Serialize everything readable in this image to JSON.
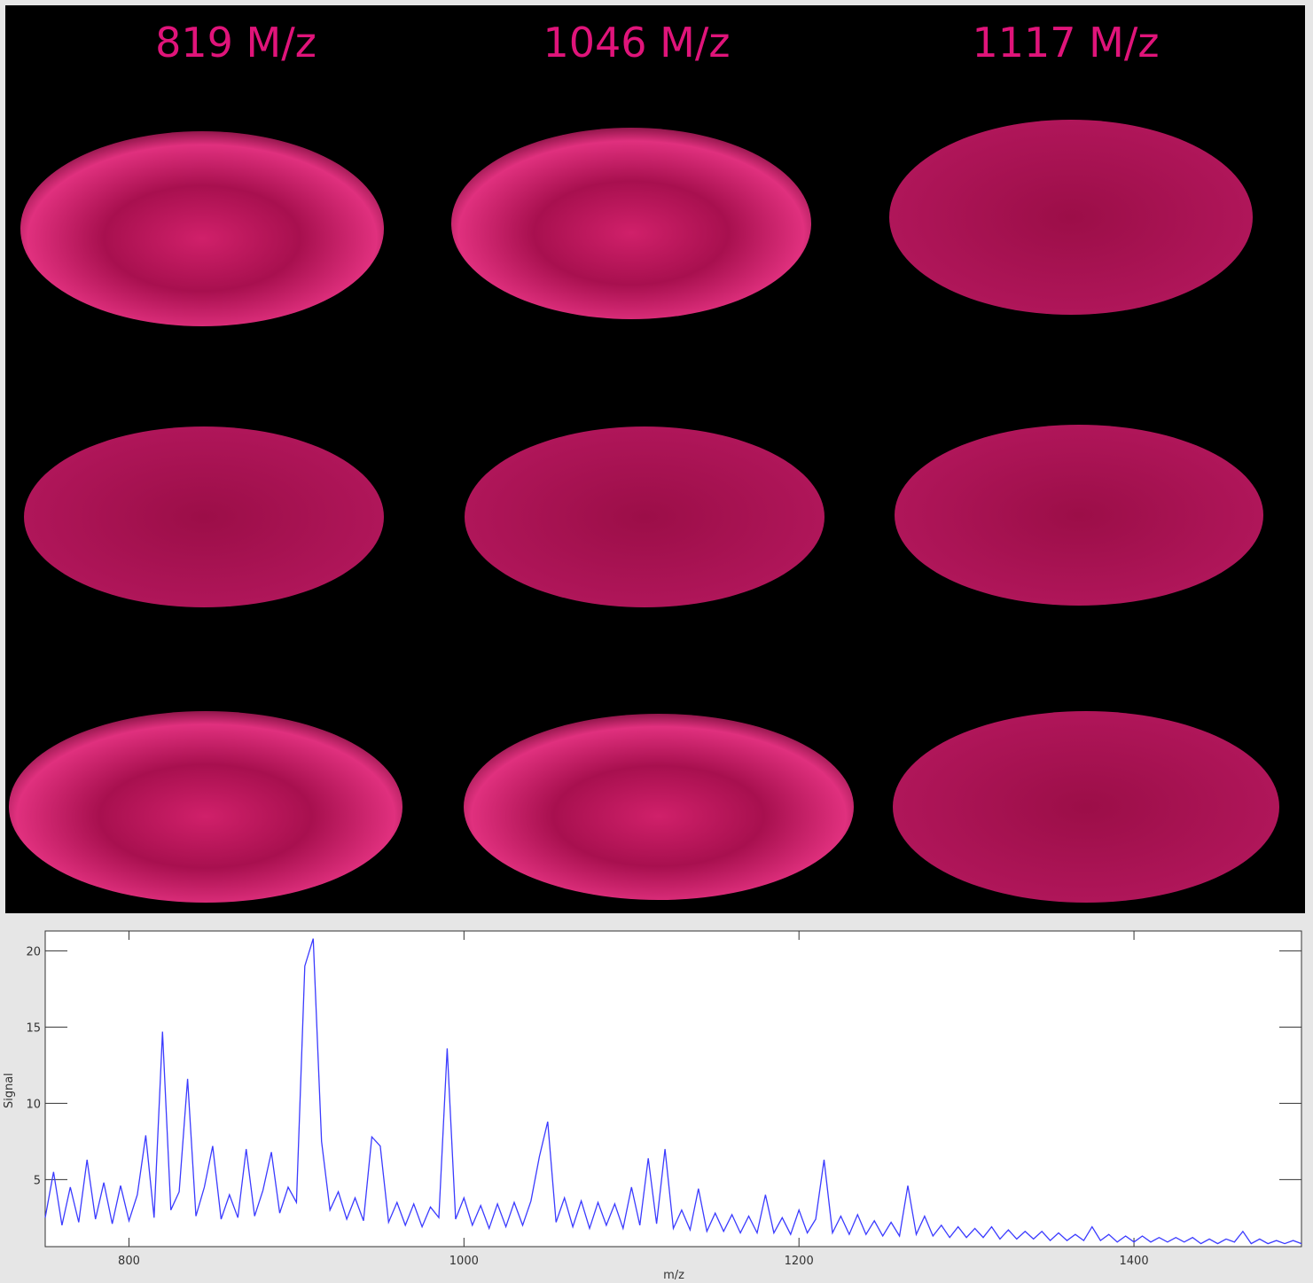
{
  "panel_titles": [
    "819 M/z",
    "1046 M/z",
    "1117 M/z"
  ],
  "chart_data": {
    "type": "line",
    "xlabel": "m/z",
    "ylabel": "Signal",
    "xlim": [
      750,
      1500
    ],
    "ylim": [
      0.6,
      21.3
    ],
    "xticks": [
      800,
      1000,
      1200,
      1400
    ],
    "yticks": [
      5,
      10,
      15,
      20
    ],
    "x": [
      750,
      755,
      760,
      765,
      770,
      775,
      780,
      785,
      790,
      795,
      800,
      805,
      810,
      815,
      820,
      825,
      830,
      835,
      840,
      845,
      850,
      855,
      860,
      865,
      870,
      875,
      880,
      885,
      890,
      895,
      900,
      905,
      910,
      915,
      920,
      925,
      930,
      935,
      940,
      945,
      950,
      955,
      960,
      965,
      970,
      975,
      980,
      985,
      990,
      995,
      1000,
      1005,
      1010,
      1015,
      1020,
      1025,
      1030,
      1035,
      1040,
      1045,
      1050,
      1055,
      1060,
      1065,
      1070,
      1075,
      1080,
      1085,
      1090,
      1095,
      1100,
      1105,
      1110,
      1115,
      1120,
      1125,
      1130,
      1135,
      1140,
      1145,
      1150,
      1155,
      1160,
      1165,
      1170,
      1175,
      1180,
      1185,
      1190,
      1195,
      1200,
      1205,
      1210,
      1215,
      1220,
      1225,
      1230,
      1235,
      1240,
      1245,
      1250,
      1255,
      1260,
      1265,
      1270,
      1275,
      1280,
      1285,
      1290,
      1295,
      1300,
      1305,
      1310,
      1315,
      1320,
      1325,
      1330,
      1335,
      1340,
      1345,
      1350,
      1355,
      1360,
      1365,
      1370,
      1375,
      1380,
      1385,
      1390,
      1395,
      1400,
      1405,
      1410,
      1415,
      1420,
      1425,
      1430,
      1435,
      1440,
      1445,
      1450,
      1455,
      1460,
      1465,
      1470,
      1475,
      1480,
      1485,
      1490,
      1495,
      1500
    ],
    "series": [
      {
        "color": "#3b3bff",
        "values": [
          2.5,
          5.5,
          2.0,
          4.5,
          2.2,
          6.3,
          2.4,
          4.8,
          2.1,
          4.6,
          2.3,
          4.0,
          7.9,
          2.5,
          14.7,
          3.0,
          4.2,
          11.6,
          2.6,
          4.5,
          7.2,
          2.4,
          4.0,
          2.5,
          7.0,
          2.6,
          4.3,
          6.8,
          2.8,
          4.5,
          3.5,
          19.0,
          20.8,
          7.5,
          3.0,
          4.2,
          2.4,
          3.8,
          2.3,
          7.8,
          7.2,
          2.2,
          3.5,
          2.0,
          3.4,
          1.9,
          3.2,
          2.5,
          13.6,
          2.4,
          3.8,
          2.0,
          3.3,
          1.8,
          3.4,
          1.9,
          3.5,
          2.0,
          3.6,
          6.5,
          8.8,
          2.2,
          3.8,
          1.9,
          3.6,
          1.8,
          3.5,
          2.0,
          3.4,
          1.8,
          4.5,
          2.0,
          6.4,
          2.1,
          7.0,
          1.8,
          3.0,
          1.7,
          4.4,
          1.6,
          2.8,
          1.6,
          2.7,
          1.5,
          2.6,
          1.5,
          4.0,
          1.5,
          2.5,
          1.4,
          3.0,
          1.5,
          2.4,
          6.3,
          1.5,
          2.6,
          1.4,
          2.7,
          1.4,
          2.3,
          1.3,
          2.2,
          1.3,
          4.6,
          1.4,
          2.6,
          1.3,
          2.0,
          1.2,
          1.9,
          1.2,
          1.8,
          1.2,
          1.9,
          1.1,
          1.7,
          1.1,
          1.6,
          1.1,
          1.6,
          1.0,
          1.5,
          1.0,
          1.4,
          1.0,
          1.9,
          1.0,
          1.4,
          0.9,
          1.3,
          0.9,
          1.3,
          0.9,
          1.2,
          0.9,
          1.2,
          0.9,
          1.2,
          0.8,
          1.1,
          0.8,
          1.1,
          0.9,
          1.6,
          0.8,
          1.1,
          0.8,
          1.0,
          0.8,
          1.0,
          0.8
        ]
      }
    ]
  }
}
